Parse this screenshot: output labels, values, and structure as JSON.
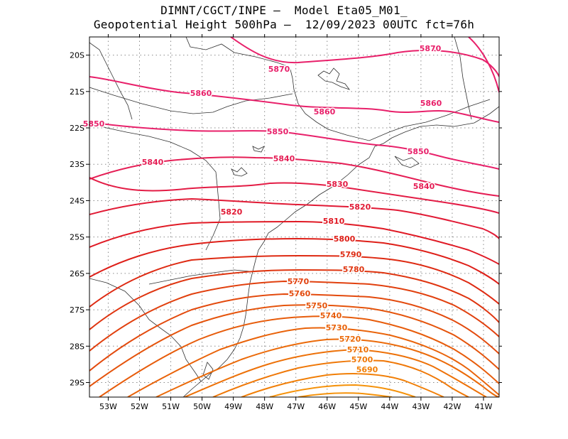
{
  "title": {
    "line1": "DIMNT/CGCT/INPE –  Model Eta05_M01_",
    "line2": "Geopotential Height 500hPa –  12/09/2023 00UTC fct=76h"
  },
  "chart_data": {
    "type": "contour",
    "variable": "Geopotential Height 500hPa",
    "lon_range": [
      -53.6,
      -40.5
    ],
    "lat_range": [
      -29.4,
      -19.5
    ],
    "lon_ticks": [
      "53W",
      "52W",
      "51W",
      "50W",
      "49W",
      "48W",
      "47W",
      "46W",
      "45W",
      "44W",
      "43W",
      "42W",
      "41W"
    ],
    "lat_ticks": [
      "20S",
      "21S",
      "22S",
      "23S",
      "24S",
      "25S",
      "26S",
      "27S",
      "28S",
      "29S"
    ],
    "grid": true,
    "contour_levels": [
      {
        "level": "5870",
        "color": "#e8206a"
      },
      {
        "level": "5860",
        "color": "#e8206a"
      },
      {
        "level": "5850",
        "color": "#e8206a"
      },
      {
        "level": "5840",
        "color": "#e51e55"
      },
      {
        "level": "5830",
        "color": "#e31c45"
      },
      {
        "level": "5820",
        "color": "#e11a35"
      },
      {
        "level": "5810",
        "color": "#e01a25"
      },
      {
        "level": "5800",
        "color": "#de1f18"
      },
      {
        "level": "5790",
        "color": "#de2a12"
      },
      {
        "level": "5780",
        "color": "#df3510"
      },
      {
        "level": "5770",
        "color": "#e1400e"
      },
      {
        "level": "5760",
        "color": "#e34a0d"
      },
      {
        "level": "5750",
        "color": "#e5540c"
      },
      {
        "level": "5740",
        "color": "#e75c0b"
      },
      {
        "level": "5730",
        "color": "#e9630a"
      },
      {
        "level": "5720",
        "color": "#eb6a09"
      },
      {
        "level": "5710",
        "color": "#ed7108"
      },
      {
        "level": "5700",
        "color": "#ef7808"
      },
      {
        "level": "5690",
        "color": "#f17f07"
      }
    ]
  }
}
